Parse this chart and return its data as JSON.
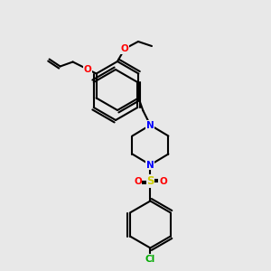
{
  "bg_color": "#e8e8e8",
  "bond_color": "#000000",
  "bond_width": 1.5,
  "atom_colors": {
    "O": "#ff0000",
    "N": "#0000ff",
    "S": "#cccc00",
    "Cl": "#00aa00",
    "C": "#000000"
  },
  "font_size": 7.5,
  "font_size_small": 6.5
}
